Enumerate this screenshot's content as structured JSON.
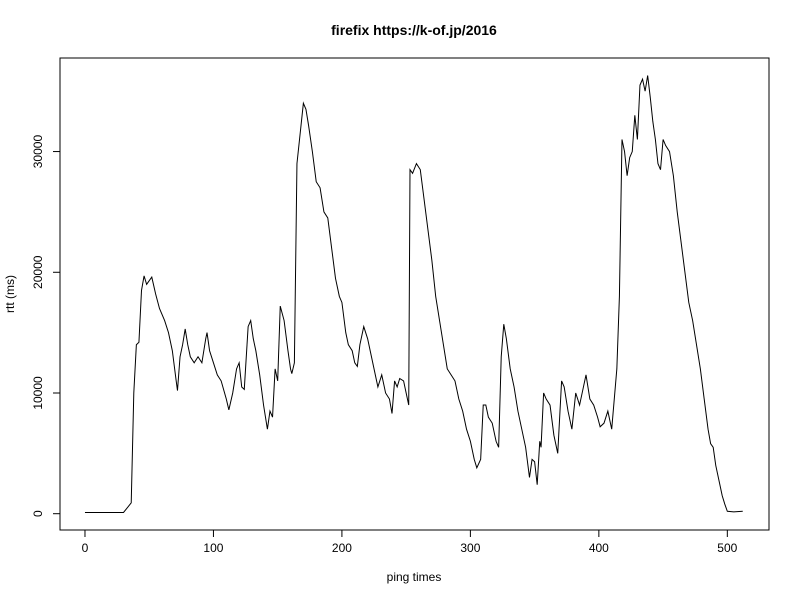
{
  "chart_data": {
    "type": "line",
    "title": "firefix https://k-of.jp/2016",
    "x_label": "ping times",
    "y_label": "rtt (ms)",
    "xlim": [
      -19.44,
      532.44
    ],
    "ylim": [
      -1350,
      37750
    ],
    "xticks": [
      0,
      100,
      200,
      300,
      400,
      500
    ],
    "yticks": [
      0,
      10000,
      20000,
      30000
    ],
    "grid": false,
    "series": [
      {
        "name": "rtt",
        "color": "#000000",
        "x": [
          0,
          10,
          20,
          30,
          33,
          36,
          38,
          40,
          42,
          44,
          46,
          48,
          52,
          55,
          58,
          62,
          65,
          68,
          71,
          72,
          74,
          76,
          78,
          80,
          82,
          85,
          88,
          91,
          94,
          95,
          97,
          100,
          103,
          106,
          110,
          112,
          115,
          118,
          120,
          122,
          124,
          127,
          129,
          131,
          133,
          136,
          139,
          142,
          144,
          146,
          148,
          150,
          152,
          155,
          158,
          160,
          161,
          163,
          165,
          168,
          170,
          172,
          174,
          177,
          180,
          183,
          186,
          189,
          192,
          195,
          198,
          200,
          203,
          205,
          208,
          210,
          212,
          214,
          217,
          220,
          223,
          226,
          228,
          231,
          234,
          237,
          239,
          241,
          243,
          245,
          248,
          250,
          252,
          253,
          255,
          258,
          261,
          264,
          267,
          270,
          273,
          276,
          279,
          282,
          285,
          288,
          291,
          294,
          297,
          300,
          303,
          305,
          308,
          310,
          312,
          314,
          317,
          320,
          322,
          324,
          326,
          328,
          331,
          334,
          337,
          340,
          343,
          346,
          348,
          350,
          352,
          354,
          355,
          357,
          359,
          362,
          365,
          368,
          371,
          373,
          376,
          379,
          382,
          385,
          388,
          390,
          393,
          396,
          399,
          401,
          404,
          407,
          410,
          412,
          414,
          416,
          418,
          420,
          422,
          424,
          426,
          428,
          430,
          432,
          434,
          436,
          438,
          440,
          442,
          444,
          446,
          448,
          450,
          452,
          455,
          458,
          461,
          464,
          467,
          470,
          473,
          476,
          479,
          482,
          485,
          487,
          489,
          491,
          494,
          496,
          498,
          500,
          505,
          512
        ],
        "values": [
          100,
          100,
          100,
          100,
          500,
          900,
          10000,
          14000,
          14200,
          18500,
          19700,
          19000,
          19600,
          18200,
          17000,
          16000,
          15000,
          13500,
          11000,
          10200,
          13000,
          14000,
          15300,
          14000,
          13000,
          12500,
          13000,
          12500,
          14500,
          15000,
          13500,
          12500,
          11500,
          11000,
          9500,
          8600,
          10000,
          12000,
          12500,
          10500,
          10300,
          15500,
          16000,
          14500,
          13500,
          11500,
          9000,
          7000,
          8500,
          8000,
          12000,
          11000,
          17200,
          16000,
          13500,
          12000,
          11600,
          12500,
          29000,
          32000,
          34000,
          33500,
          32200,
          30000,
          27500,
          27000,
          25000,
          24500,
          22000,
          19500,
          18000,
          17500,
          15000,
          14000,
          13500,
          12500,
          12200,
          14000,
          15500,
          14500,
          13000,
          11500,
          10500,
          11500,
          10000,
          9500,
          8300,
          11000,
          10500,
          11200,
          11000,
          10000,
          9000,
          28500,
          28200,
          29000,
          28500,
          26000,
          23500,
          21000,
          18000,
          16000,
          14000,
          12000,
          11500,
          11000,
          9500,
          8500,
          7000,
          6000,
          4500,
          3800,
          4500,
          9000,
          9000,
          8000,
          7500,
          6000,
          5500,
          13000,
          15700,
          14500,
          12000,
          10500,
          8500,
          7000,
          5500,
          3000,
          4500,
          4300,
          2400,
          6000,
          5500,
          10000,
          9500,
          9000,
          6500,
          5000,
          11000,
          10500,
          8500,
          7000,
          10000,
          9000,
          10500,
          11500,
          9500,
          9000,
          8000,
          7200,
          7500,
          8500,
          7000,
          9500,
          12000,
          18000,
          31000,
          30000,
          28000,
          29500,
          30000,
          33000,
          31000,
          35500,
          36000,
          35000,
          36300,
          34500,
          32500,
          31000,
          29000,
          28500,
          31000,
          30500,
          30000,
          28000,
          25000,
          22500,
          20000,
          17500,
          16000,
          14000,
          12000,
          9500,
          7000,
          5800,
          5500,
          4000,
          2500,
          1500,
          800,
          200,
          150,
          200
        ]
      }
    ]
  }
}
